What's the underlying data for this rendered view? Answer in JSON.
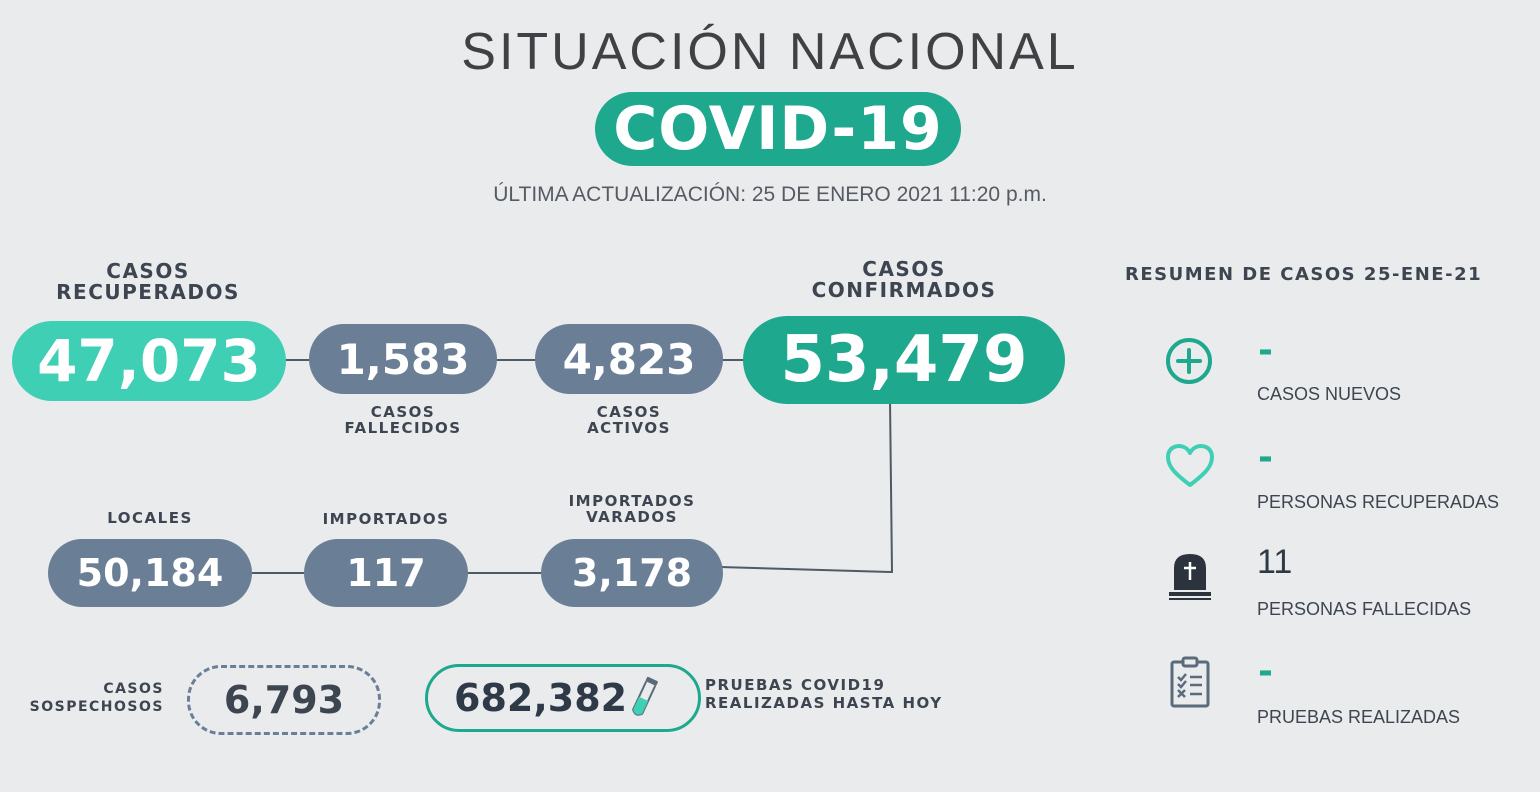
{
  "header": {
    "title": "SITUACIÓN NACIONAL",
    "badge": "COVID-19",
    "updated": "ÚLTIMA ACTUALIZACIÓN: 25 DE ENERO 2021 11:20 p.m."
  },
  "recuperados": {
    "label_1": "CASOS",
    "label_2": "RECUPERADOS",
    "value": "47,073"
  },
  "fallecidos": {
    "label_1": "CASOS",
    "label_2": "FALLECIDOS",
    "value": "1,583"
  },
  "activos": {
    "label_1": "CASOS",
    "label_2": "ACTIVOS",
    "value": "4,823"
  },
  "confirmados": {
    "label_1": "CASOS",
    "label_2": "CONFIRMADOS",
    "value": "53,479"
  },
  "locales": {
    "label": "LOCALES",
    "value": "50,184"
  },
  "importados": {
    "label": "IMPORTADOS",
    "value": "117"
  },
  "varados": {
    "label_1": "IMPORTADOS",
    "label_2": "VARADOS",
    "value": "3,178"
  },
  "sospechosos": {
    "label_1": "CASOS",
    "label_2": "SOSPECHOSOS",
    "value": "6,793"
  },
  "pruebas": {
    "value": "682,382",
    "label_1": "PRUEBAS COVID19",
    "label_2": "REALIZADAS HASTA HOY"
  },
  "resumen": {
    "title": "RESUMEN DE CASOS 25-ENE-21",
    "items": [
      {
        "icon": "plus-circle-icon",
        "value": "-",
        "label": "CASOS NUEVOS"
      },
      {
        "icon": "heart-icon",
        "value": "-",
        "label": "PERSONAS RECUPERADAS"
      },
      {
        "icon": "tombstone-icon",
        "value": "11",
        "label": "PERSONAS FALLECIDAS"
      },
      {
        "icon": "clipboard-checklist-icon",
        "value": "-",
        "label": "PRUEBAS REALIZADAS"
      }
    ]
  },
  "colors": {
    "teal": "#1ea88d",
    "teal_light": "#3ecfb5",
    "slate": "#6a7f96",
    "background": "#eaebed",
    "text": "#3d4650"
  }
}
